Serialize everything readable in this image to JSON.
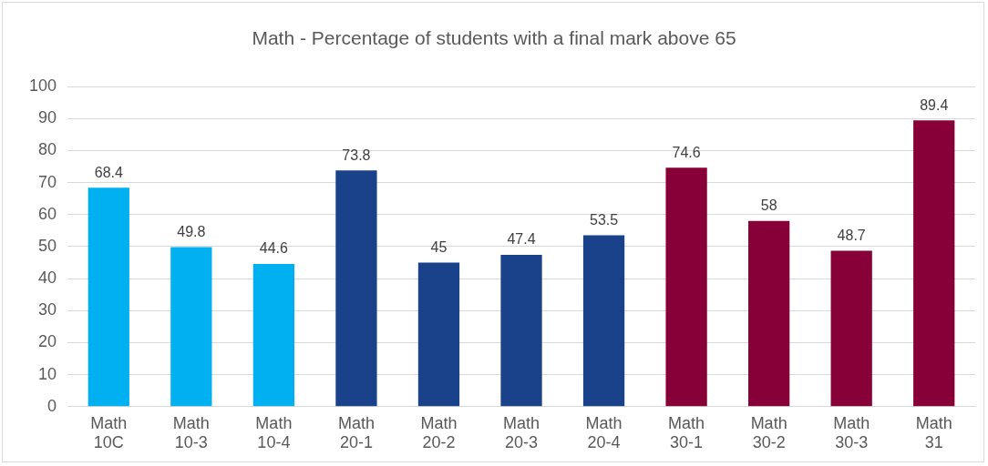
{
  "chart_data": {
    "type": "bar",
    "title": "Math - Percentage of students with a final mark above 65",
    "categories": [
      "Math 10C",
      "Math 10-3",
      "Math 10-4",
      "Math 20-1",
      "Math 20-2",
      "Math 20-3",
      "Math 20-4",
      "Math 30-1",
      "Math 30-2",
      "Math 30-3",
      "Math 31"
    ],
    "values": [
      68.4,
      49.8,
      44.6,
      73.8,
      45,
      47.4,
      53.5,
      74.6,
      58,
      48.7,
      89.4
    ],
    "colors": [
      "#00b0f0",
      "#00b0f0",
      "#00b0f0",
      "#1a428a",
      "#1a428a",
      "#1a428a",
      "#1a428a",
      "#870037",
      "#870037",
      "#870037",
      "#870037"
    ],
    "ylim": [
      0,
      100
    ],
    "yticks": [
      0,
      10,
      20,
      30,
      40,
      50,
      60,
      70,
      80,
      90,
      100
    ],
    "grid": "y",
    "data_labels": true
  }
}
